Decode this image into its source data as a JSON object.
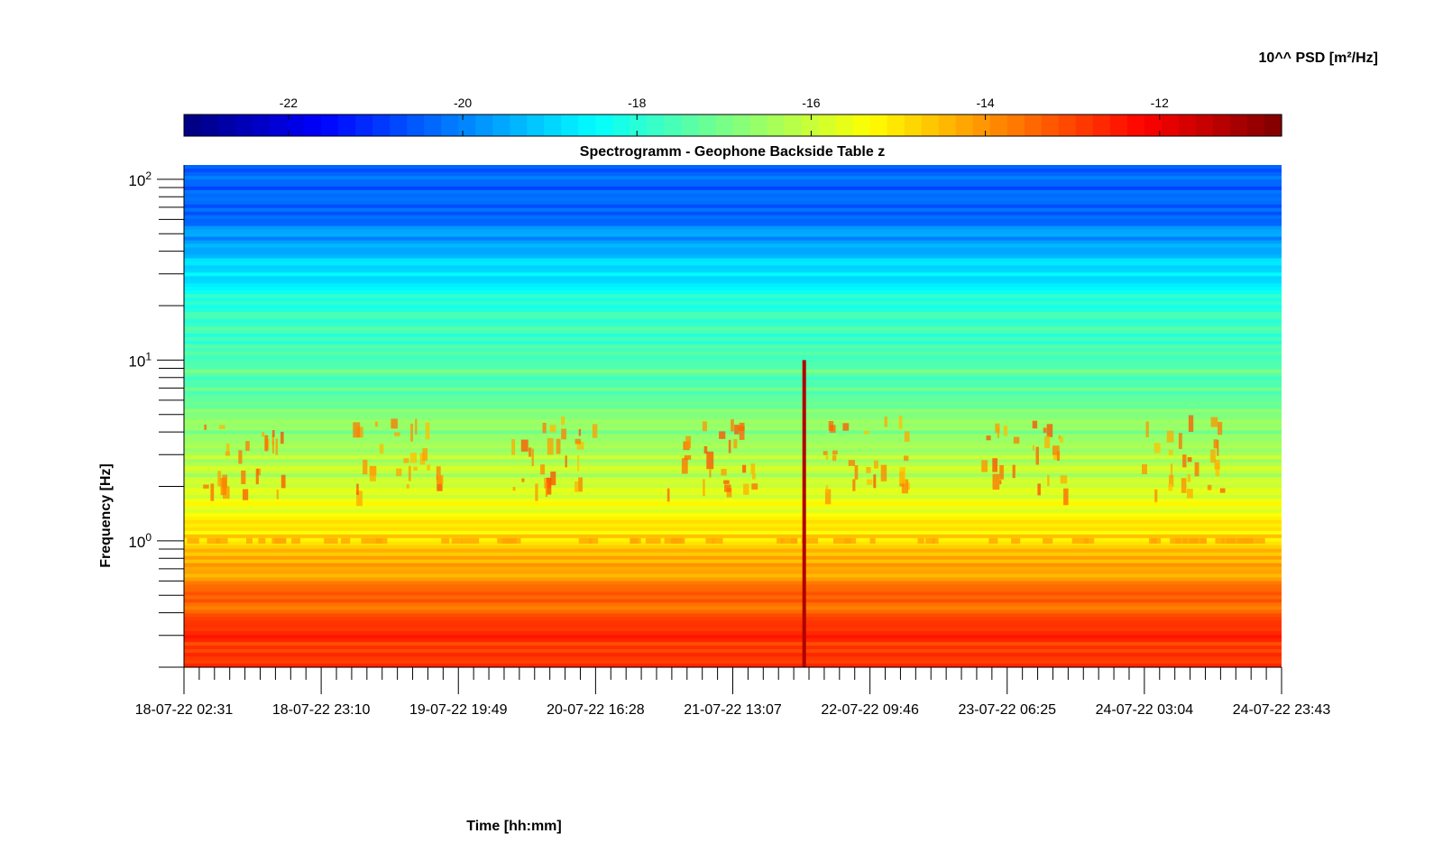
{
  "chart_data": {
    "type": "heatmap",
    "title": "Spectrogramm - Geophone Backside Table z",
    "xlabel": "Time [hh:mm]",
    "ylabel": "Frequency [Hz]",
    "colorbar": {
      "label": "10^^ PSD [m²/Hz]",
      "range": [
        -23.2,
        -10.6
      ],
      "tick_values": [
        -22,
        -20,
        -18,
        -16,
        -14,
        -12
      ],
      "tick_labels": [
        "-22",
        "-20",
        "-18",
        "-16",
        "-14",
        "-12"
      ],
      "colormap": "jet",
      "placement": "top"
    },
    "x_axis": {
      "start": "18-07-22 02:31",
      "end": "24-07-22 23:43",
      "major_tick_labels": [
        "18-07-22 02:31",
        "18-07-22 23:10",
        "19-07-22 19:49",
        "20-07-22 16:28",
        "21-07-22 13:07",
        "22-07-22 09:46",
        "23-07-22 06:25",
        "24-07-22 03:04",
        "24-07-22 23:43"
      ],
      "minor_ticks_per_interval": 8
    },
    "y_axis": {
      "scale": "log",
      "range": [
        0.2,
        120
      ],
      "major_ticks": [
        1,
        10,
        100
      ],
      "major_tick_labels": [
        {
          "base": "10",
          "exp": "0"
        },
        {
          "base": "10",
          "exp": "1"
        },
        {
          "base": "10",
          "exp": "2"
        }
      ]
    },
    "grid": false,
    "legend": "none",
    "description_of_values": {
      "approx_psd_exponent_by_band": [
        {
          "frequency_hz": [
            40,
            120
          ],
          "value": -20.5
        },
        {
          "frequency_hz": [
            10,
            40
          ],
          "value": -18.0
        },
        {
          "frequency_hz": [
            3,
            10
          ],
          "value": -17.0
        },
        {
          "frequency_hz": [
            1,
            3
          ],
          "value": -15.8
        },
        {
          "frequency_hz": [
            0.5,
            1
          ],
          "value": -14.2
        },
        {
          "frequency_hz": [
            0.2,
            0.5
          ],
          "value": -12.8
        }
      ],
      "daily_activity_peaks_hz": [
        2.5,
        4.0
      ],
      "microseism_line_hz": 1.0,
      "broadband_event_time": "22-07-22 00:00"
    }
  }
}
